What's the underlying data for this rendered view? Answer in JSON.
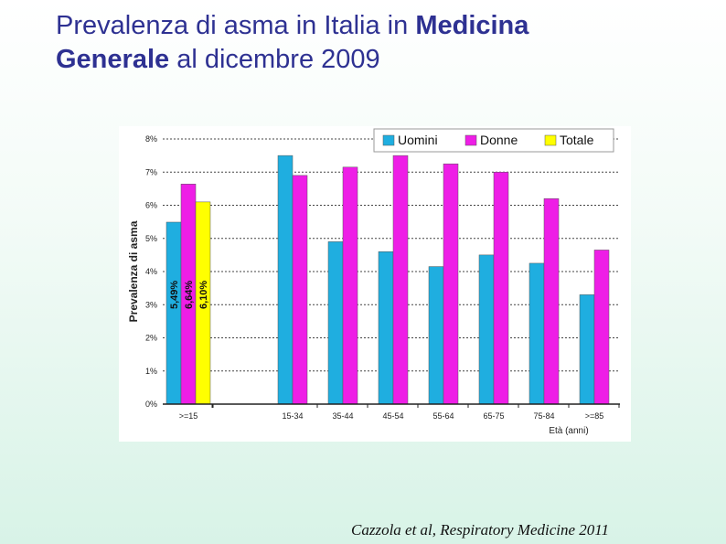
{
  "title": {
    "part1": "Prevalenza di asma in Italia in ",
    "part2": "Medicina",
    "part3": "Generale",
    "part4": " al dicembre 2009"
  },
  "citation": "Cazzola et al, Respiratory Medicine 2011",
  "colors": {
    "title": "#2e3192",
    "uomini": "#1faee0",
    "donne": "#ee1ee6",
    "totale": "#ffff00"
  },
  "chart_data": {
    "type": "bar",
    "ylabel": "Prevalenza di asma",
    "xlabel": "Età (anni)",
    "ylim": [
      0,
      8
    ],
    "yticks": [
      "0%",
      "1%",
      "2%",
      "3%",
      "4%",
      "5%",
      "6%",
      "7%",
      "8%"
    ],
    "grid": true,
    "legend": "top-right",
    "categories": [
      ">=15",
      "15-34",
      "35-44",
      "45-54",
      "55-64",
      "65-75",
      "75-84",
      ">=85"
    ],
    "series": [
      {
        "name": "Uomini",
        "values": [
          5.49,
          7.5,
          4.9,
          4.6,
          4.15,
          4.5,
          4.25,
          3.3
        ]
      },
      {
        "name": "Donne",
        "values": [
          6.64,
          6.9,
          7.15,
          7.5,
          7.25,
          7.0,
          6.2,
          4.65
        ]
      },
      {
        "name": "Totale",
        "values": [
          6.1,
          null,
          null,
          null,
          null,
          null,
          null,
          null
        ]
      }
    ],
    "annotations": [
      "5,49%",
      "6,64%",
      "6,10%"
    ]
  }
}
